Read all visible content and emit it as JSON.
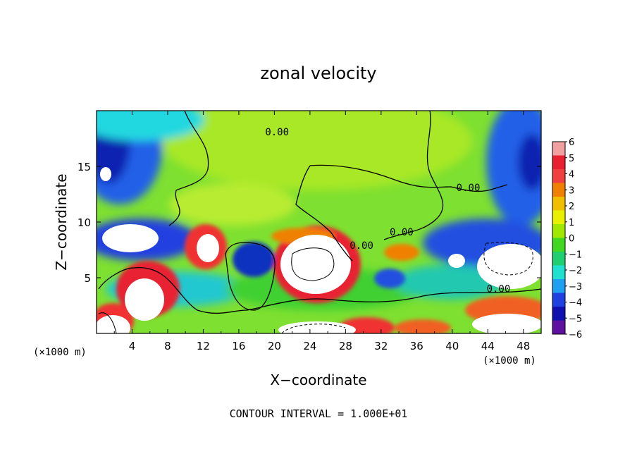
{
  "chart_data": {
    "type": "heatmap",
    "title": "zonal velocity",
    "xlabel": "X−coordinate",
    "ylabel": "Z−coordinate",
    "x_unit_left": "(×1000 m)",
    "x_unit_right": "(×1000 m)",
    "xlim": [
      0,
      50
    ],
    "ylim": [
      0,
      20
    ],
    "xticks": [
      4,
      8,
      12,
      16,
      20,
      24,
      28,
      32,
      36,
      40,
      44,
      48
    ],
    "yticks": [
      5,
      10,
      15
    ],
    "colorbar": {
      "ticks": [
        6,
        5,
        4,
        3,
        2,
        1,
        0,
        -1,
        -2,
        -3,
        -4,
        -5,
        -6
      ],
      "tick_labels": [
        "6",
        "5",
        "4",
        "3",
        "2",
        "1",
        "0",
        "−1",
        "−2",
        "−3",
        "−4",
        "−5",
        "−6"
      ],
      "colors": [
        "#f0a0a0",
        "#e82030",
        "#f04040",
        "#f08000",
        "#f0c000",
        "#e8f000",
        "#a0e800",
        "#40d820",
        "#20d070",
        "#20e0d0",
        "#20a0f0",
        "#2040e0",
        "#1010b0",
        "#6010a0"
      ]
    },
    "contour_labels": [
      {
        "text": "0.00",
        "x": 20.3,
        "y": 17.8
      },
      {
        "text": "0.00",
        "x": 41.8,
        "y": 12.8
      },
      {
        "text": "0.00",
        "x": 34.3,
        "y": 8.8
      },
      {
        "text": "0.00",
        "x": 29.8,
        "y": 7.6
      },
      {
        "text": "0.00",
        "x": 45.2,
        "y": 3.7
      }
    ],
    "annotation": "CONTOUR INTERVAL = 1.000E+01"
  }
}
